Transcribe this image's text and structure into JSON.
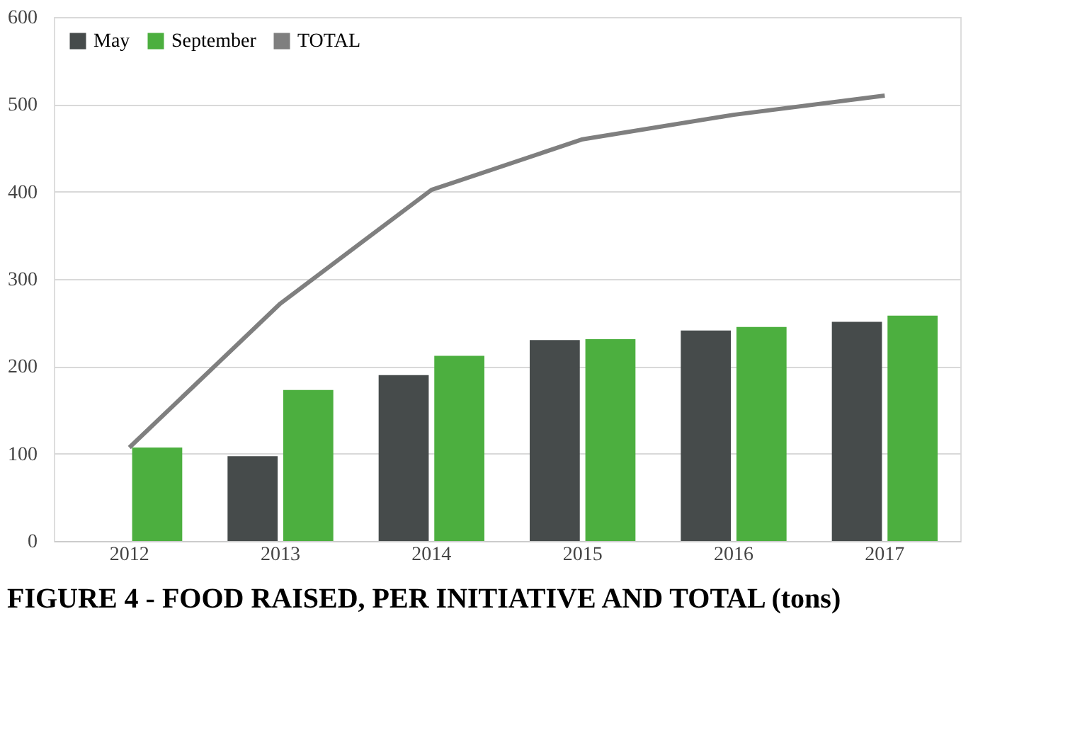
{
  "chart_data": {
    "type": "bar",
    "title": "FIGURE 4 - FOOD RAISED, PER INITIATIVE AND TOTAL (tons)",
    "categories": [
      "2012",
      "2013",
      "2014",
      "2015",
      "2016",
      "2017"
    ],
    "series": [
      {
        "name": "May",
        "color": "#464b4b",
        "values": [
          null,
          97,
          190,
          230,
          241,
          251
        ]
      },
      {
        "name": "September",
        "color": "#4caf3f",
        "values": [
          107,
          173,
          212,
          231,
          245,
          258
        ]
      },
      {
        "name": "TOTAL",
        "color": "#7f7f7f",
        "type": "line",
        "values": [
          107,
          272,
          402,
          460,
          488,
          510
        ]
      }
    ],
    "ylim": [
      0,
      600
    ],
    "yticks": [
      0,
      100,
      200,
      300,
      400,
      500,
      600
    ],
    "grid": "y",
    "legend": "top left"
  }
}
